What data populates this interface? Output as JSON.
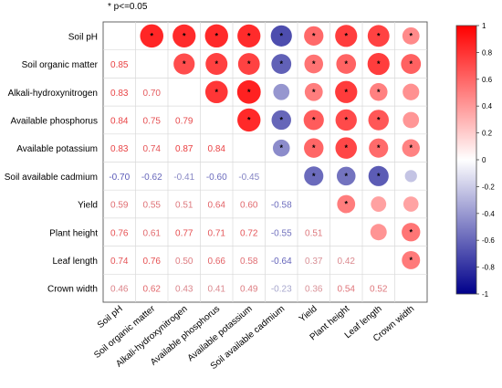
{
  "note": "* p<=0.05",
  "chart_data": {
    "type": "heatmap",
    "subtype": "correlation-matrix",
    "variables": [
      "Soil pH",
      "Soil organic matter",
      "Alkali-hydroxynitrogen",
      "Available phosphorus",
      "Available potassium",
      "Soil available cadmium",
      "Yield",
      "Plant height",
      "Leaf length",
      "Crown width"
    ],
    "lower_triangle_labels": [
      [],
      [
        "0.85"
      ],
      [
        "0.83",
        "0.70"
      ],
      [
        "0.84",
        "0.75",
        "0.79"
      ],
      [
        "0.83",
        "0.74",
        "0.87",
        "0.84"
      ],
      [
        "-0.70",
        "-0.62",
        "-0.41",
        "-0.60",
        "-0.45"
      ],
      [
        "0.59",
        "0.55",
        "0.51",
        "0.64",
        "0.60",
        "-0.58"
      ],
      [
        "0.76",
        "0.61",
        "0.77",
        "0.71",
        "0.72",
        "-0.55",
        "0.51"
      ],
      [
        "0.74",
        "0.76",
        "0.50",
        "0.66",
        "0.58",
        "-0.64",
        "0.37",
        "0.42"
      ],
      [
        "0.46",
        "0.62",
        "0.43",
        "0.41",
        "0.49",
        "-0.23",
        "0.36",
        "0.54",
        "0.52"
      ]
    ],
    "significant_marker": "*",
    "colorbar": {
      "min": -1,
      "max": 1,
      "ticks": [
        "1",
        "0.8",
        "0.6",
        "0.4",
        "0.2",
        "0",
        "-0.2",
        "-0.4",
        "-0.6",
        "-0.8",
        "-1"
      ]
    },
    "colors": {
      "positive": "#ff0000",
      "neutral": "#ffffff",
      "negative": "#00008b"
    }
  }
}
